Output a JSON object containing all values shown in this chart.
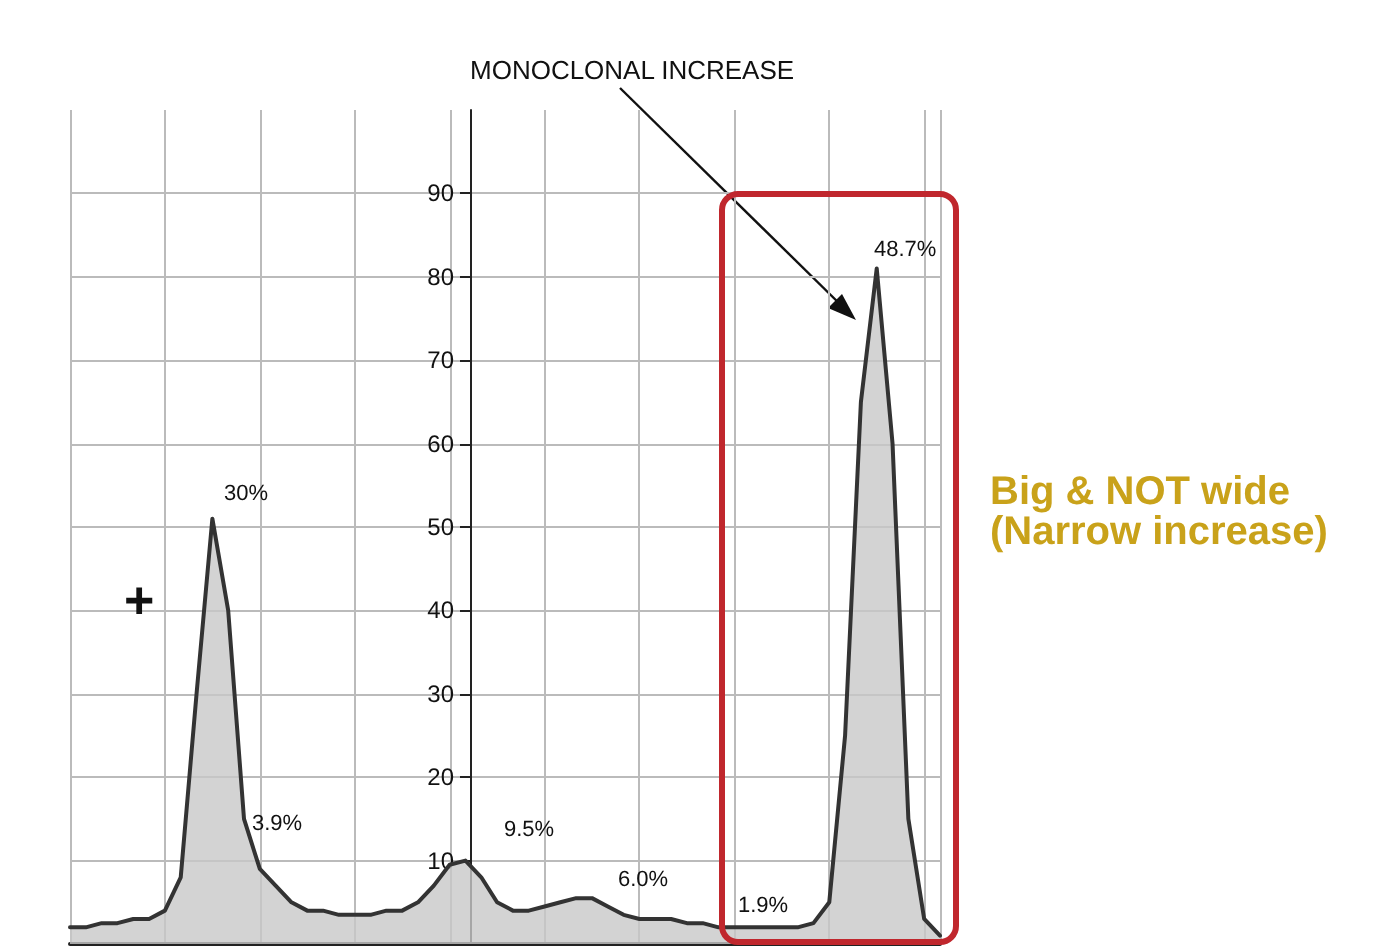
{
  "chart_data": {
    "type": "area",
    "categories": [
      null,
      null,
      null,
      null,
      null,
      null,
      null,
      null,
      null,
      null,
      null,
      null,
      null,
      null,
      null,
      null,
      null,
      null,
      null,
      null,
      null,
      null,
      null,
      null,
      null,
      null,
      null,
      null,
      null,
      null,
      null,
      null,
      null,
      null,
      null,
      null,
      null,
      null,
      null,
      null,
      null,
      null,
      null,
      null,
      null,
      null,
      null,
      null,
      null,
      null,
      null,
      null,
      null,
      null,
      null,
      null
    ],
    "series": [
      {
        "color": "#333333",
        "values": [
          2,
          2,
          2.5,
          2.5,
          3,
          3,
          4,
          8,
          30,
          51,
          40,
          15,
          9,
          7,
          5,
          4,
          4,
          3.5,
          3.5,
          3.5,
          4,
          4,
          5,
          7,
          9.5,
          10,
          8,
          5,
          4,
          4,
          4.5,
          5,
          5.5,
          5.5,
          4.5,
          3.5,
          3,
          3,
          3,
          2.5,
          2.5,
          2,
          2,
          2,
          2,
          2,
          2,
          2.5,
          5,
          25,
          65,
          81,
          60,
          15,
          3,
          1
        ]
      }
    ],
    "ylim": [
      0,
      100
    ],
    "yticks": [
      10,
      20,
      30,
      40,
      50,
      60,
      70,
      80,
      90
    ],
    "grid": true,
    "annotations": [
      "MONOCLONAL INCREASE",
      "30%",
      "3.9%",
      "9.5%",
      "6.0%",
      "1.9%",
      "48.7%",
      "+",
      "Big & NOT wide (Narrow increase)"
    ]
  }
}
